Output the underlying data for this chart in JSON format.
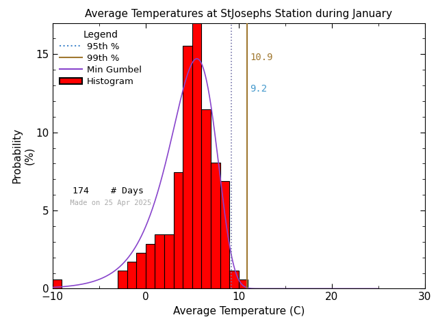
{
  "title": "Average Temperatures at StJosephs Station during January",
  "xlabel": "Average Temperature (C)",
  "ylabel": "Probability\n(%)",
  "xlim": [
    -10,
    30
  ],
  "ylim": [
    0,
    17
  ],
  "xticks": [
    -10,
    0,
    10,
    20,
    30
  ],
  "yticks": [
    0,
    5,
    10,
    15
  ],
  "bar_edges": [
    -10,
    -9,
    -8,
    -7,
    -6,
    -5,
    -4,
    -3,
    -2,
    -1,
    0,
    1,
    2,
    3,
    4,
    5,
    6,
    7,
    8,
    9,
    10,
    11,
    12,
    13,
    14,
    15,
    16,
    17,
    18,
    19,
    20
  ],
  "bar_heights": [
    0.57,
    0.0,
    0.0,
    0.0,
    0.0,
    0.0,
    0.0,
    1.15,
    1.72,
    2.3,
    2.87,
    3.45,
    3.45,
    7.47,
    15.52,
    17.24,
    11.49,
    8.05,
    6.9,
    1.15,
    0.57,
    0.0,
    0.0,
    0.0,
    0.0,
    0.0,
    0.0,
    0.0,
    0.0,
    0.0
  ],
  "bar_color": "#ff0000",
  "bar_edgecolor": "#000000",
  "percentile_95": 9.2,
  "percentile_99": 10.9,
  "num_days": 174,
  "gumbel_mu": 5.5,
  "gumbel_beta": 2.5,
  "line_95_color": "#7777aa",
  "line_99_color": "#a07830",
  "gumbel_color": "#8844cc",
  "label_95_color": "#4499cc",
  "label_99_color": "#a07830",
  "watermark": "Made on 25 Apr 2025",
  "background_color": "#ffffff",
  "title_fontsize": 11,
  "axis_fontsize": 11,
  "tick_fontsize": 11
}
